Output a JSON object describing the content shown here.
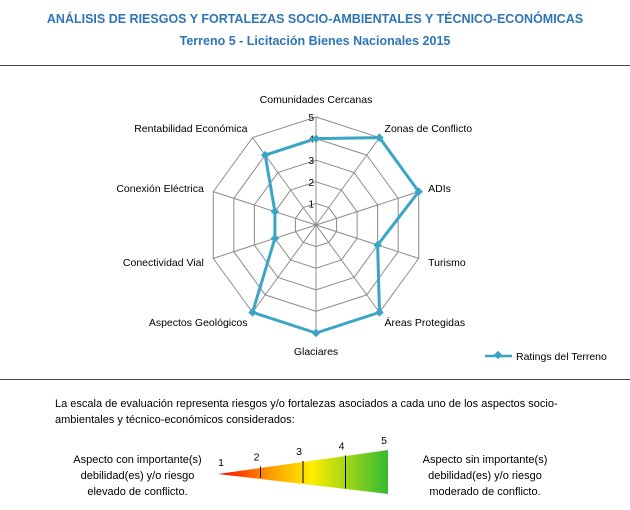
{
  "header": {
    "title": "ANÁLISIS DE RIESGOS Y FORTALEZAS SOCIO-AMBIENTALES Y TÉCNICO-ECONÓMICAS",
    "subtitle": "Terreno 5 - Licitación Bienes Nacionales 2015"
  },
  "chart_data": {
    "type": "radar",
    "categories": [
      "Comunidades Cercanas",
      "Zonas de Conflicto",
      "ADIs",
      "Turismo",
      "Áreas Protegidas",
      "Glaciares",
      "Aspectos Geológicos",
      "Conectividad Vial",
      "Conexión Eléctrica",
      "Rentabilidad Económica"
    ],
    "series": [
      {
        "name": "Ratings del Terreno",
        "values": [
          4,
          5,
          5,
          3,
          5,
          5,
          5,
          2,
          2,
          4
        ],
        "color": "#3aa5c6"
      }
    ],
    "scale": [
      1,
      2,
      3,
      4,
      5
    ],
    "grid": true,
    "legend": "bottom-right"
  },
  "legend": {
    "label": "Ratings del Terreno"
  },
  "scale_note": {
    "text": "La escala  de evaluación representa riesgos y/o fortalezas asociados a cada uno de los aspectos socio-ambientales y técnico-económicos considerados:",
    "left_label": "Aspecto con importante(s) debilidad(es) y/o riesgo elevado de conflicto.",
    "right_label": "Aspecto sin importante(s) debilidad(es) y/o riesgo moderado de conflicto.",
    "levels": [
      "1",
      "2",
      "3",
      "4",
      "5"
    ]
  }
}
